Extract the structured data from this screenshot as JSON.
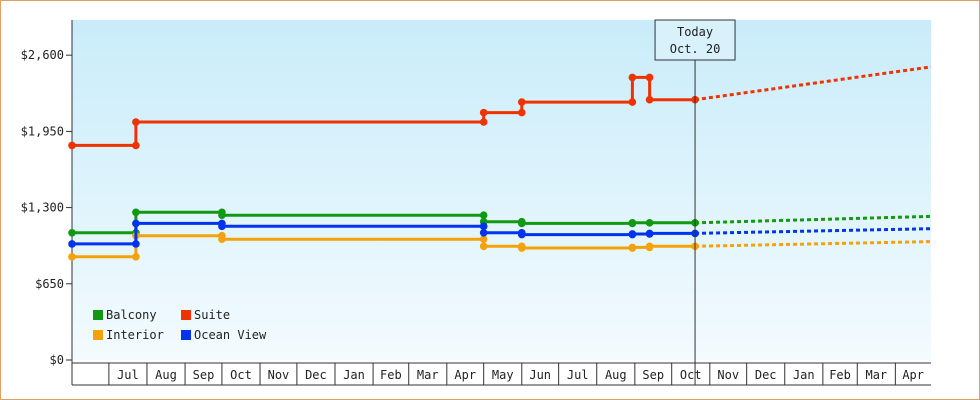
{
  "chart_data": {
    "type": "line",
    "title": "",
    "xlabel": "",
    "ylabel": "",
    "ylim": [
      0,
      2900
    ],
    "y_ticks": [
      0,
      650,
      1300,
      1950,
      2600
    ],
    "y_tick_labels": [
      "$0",
      "$650",
      "$1,300",
      "$1,950",
      "$2,600"
    ],
    "x_tick_labels": [
      "Jul",
      "Aug",
      "Sep",
      "Oct",
      "Nov",
      "Dec",
      "Jan",
      "Feb",
      "Mar",
      "Apr",
      "May",
      "Jun",
      "Jul",
      "Aug",
      "Sep",
      "Oct",
      "Nov",
      "Dec",
      "Jan",
      "Feb",
      "Mar",
      "Apr"
    ],
    "x_tick_dates": [
      "2019-07-01",
      "2019-08-01",
      "2019-09-01",
      "2019-10-01",
      "2019-11-01",
      "2019-12-01",
      "2020-01-01",
      "2020-02-01",
      "2020-03-01",
      "2020-04-01",
      "2020-05-01",
      "2020-06-01",
      "2020-07-01",
      "2020-08-01",
      "2020-09-01",
      "2020-10-01",
      "2020-11-01",
      "2020-12-01",
      "2021-01-01",
      "2021-02-01",
      "2021-03-01",
      "2021-04-01"
    ],
    "x_range": [
      "2019-06-01",
      "2021-04-30"
    ],
    "today_marker": {
      "date": "2020-10-20",
      "line1": "Today",
      "line2": "Oct. 20"
    },
    "grid": false,
    "legend_position": "bottom-left",
    "series": [
      {
        "name": "Balcony",
        "color": "#119911",
        "points": [
          [
            "2019-06-01",
            1085
          ],
          [
            "2019-07-23",
            1085
          ],
          [
            "2019-07-23",
            1260
          ],
          [
            "2019-10-01",
            1260
          ],
          [
            "2019-10-01",
            1235
          ],
          [
            "2020-05-01",
            1235
          ],
          [
            "2020-05-01",
            1180
          ],
          [
            "2020-06-01",
            1180
          ],
          [
            "2020-06-01",
            1165
          ],
          [
            "2020-08-30",
            1165
          ],
          [
            "2020-08-30",
            1170
          ],
          [
            "2020-09-13",
            1170
          ],
          [
            "2020-09-13",
            1170
          ],
          [
            "2020-10-20",
            1170
          ]
        ],
        "markers": [
          "2019-06-01",
          "2019-07-23",
          "2019-10-01",
          "2020-05-01",
          "2020-06-01",
          "2020-08-30",
          "2020-09-13",
          "2020-10-20"
        ],
        "forecast": [
          [
            "2020-10-20",
            1170
          ],
          [
            "2021-04-30",
            1225
          ]
        ]
      },
      {
        "name": "Suite",
        "color": "#ee3300",
        "points": [
          [
            "2019-06-01",
            1830
          ],
          [
            "2019-07-23",
            1830
          ],
          [
            "2019-07-23",
            2030
          ],
          [
            "2020-05-01",
            2030
          ],
          [
            "2020-05-01",
            2110
          ],
          [
            "2020-06-01",
            2110
          ],
          [
            "2020-06-01",
            2200
          ],
          [
            "2020-08-30",
            2200
          ],
          [
            "2020-08-30",
            2410
          ],
          [
            "2020-09-13",
            2410
          ],
          [
            "2020-09-13",
            2220
          ],
          [
            "2020-10-20",
            2220
          ]
        ],
        "markers": [
          "2019-06-01",
          "2019-07-23",
          "2020-05-01",
          "2020-06-01",
          "2020-08-30",
          "2020-09-13",
          "2020-10-20"
        ],
        "forecast": [
          [
            "2020-10-20",
            2220
          ],
          [
            "2021-04-30",
            2500
          ]
        ]
      },
      {
        "name": "Interior",
        "color": "#f5a10a",
        "points": [
          [
            "2019-06-01",
            880
          ],
          [
            "2019-07-23",
            880
          ],
          [
            "2019-07-23",
            1060
          ],
          [
            "2019-10-01",
            1060
          ],
          [
            "2019-10-01",
            1030
          ],
          [
            "2020-05-01",
            1030
          ],
          [
            "2020-05-01",
            970
          ],
          [
            "2020-06-01",
            970
          ],
          [
            "2020-06-01",
            955
          ],
          [
            "2020-08-30",
            955
          ],
          [
            "2020-08-30",
            960
          ],
          [
            "2020-09-13",
            960
          ],
          [
            "2020-09-13",
            970
          ],
          [
            "2020-10-20",
            970
          ]
        ],
        "markers": [
          "2019-06-01",
          "2019-07-23",
          "2019-10-01",
          "2020-05-01",
          "2020-06-01",
          "2020-08-30",
          "2020-09-13",
          "2020-10-20"
        ],
        "forecast": [
          [
            "2020-10-20",
            970
          ],
          [
            "2021-04-30",
            1010
          ]
        ]
      },
      {
        "name": "Ocean View",
        "color": "#0033ee",
        "points": [
          [
            "2019-06-01",
            990
          ],
          [
            "2019-07-23",
            990
          ],
          [
            "2019-07-23",
            1165
          ],
          [
            "2019-10-01",
            1165
          ],
          [
            "2019-10-01",
            1140
          ],
          [
            "2020-05-01",
            1140
          ],
          [
            "2020-05-01",
            1085
          ],
          [
            "2020-06-01",
            1085
          ],
          [
            "2020-06-01",
            1070
          ],
          [
            "2020-08-30",
            1070
          ],
          [
            "2020-08-30",
            1075
          ],
          [
            "2020-09-13",
            1075
          ],
          [
            "2020-09-13",
            1080
          ],
          [
            "2020-10-20",
            1080
          ]
        ],
        "markers": [
          "2019-06-01",
          "2019-07-23",
          "2019-10-01",
          "2020-05-01",
          "2020-06-01",
          "2020-08-30",
          "2020-09-13",
          "2020-10-20"
        ],
        "forecast": [
          [
            "2020-10-20",
            1080
          ],
          [
            "2021-04-30",
            1120
          ]
        ]
      }
    ],
    "legend": [
      {
        "name": "Balcony",
        "color": "#119911"
      },
      {
        "name": "Suite",
        "color": "#ee3300"
      },
      {
        "name": "Interior",
        "color": "#f5a10a"
      },
      {
        "name": "Ocean View",
        "color": "#0033ee"
      }
    ]
  },
  "colors": {
    "background_top": "#c9ecfa",
    "background_bottom": "#f3fbfe",
    "frame_border": "#e0a060",
    "axis": "#333333"
  }
}
